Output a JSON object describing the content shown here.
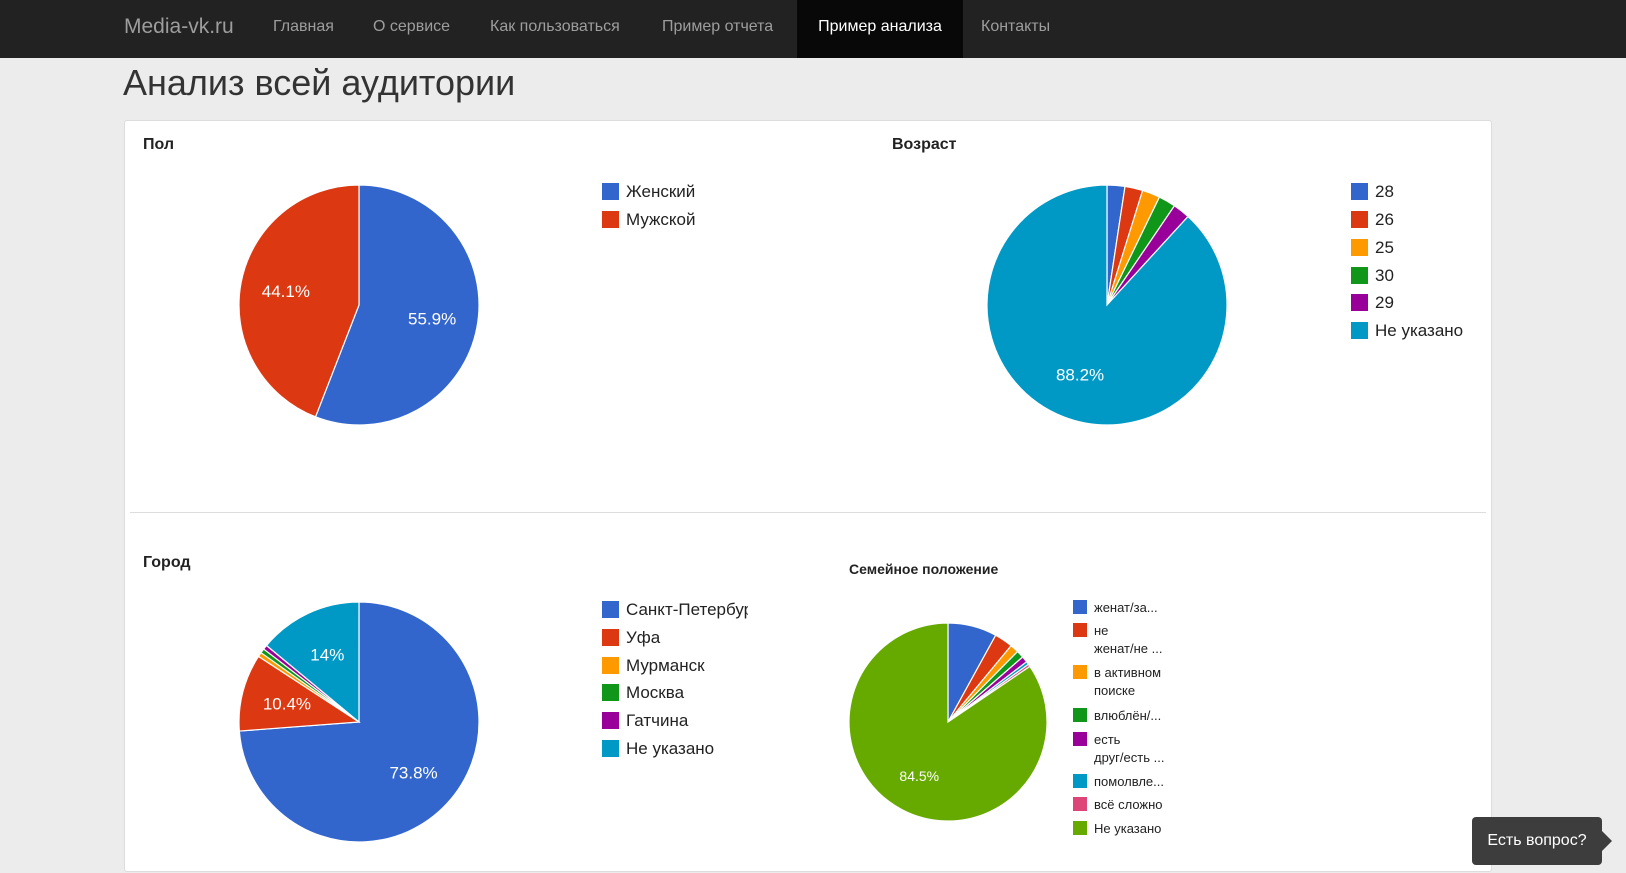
{
  "navbar": {
    "brand": "Media-vk.ru",
    "items": [
      {
        "label": "Главная",
        "active": false
      },
      {
        "label": "О сервисе",
        "active": false
      },
      {
        "label": "Как пользоваться",
        "active": false
      },
      {
        "label": "Пример отчета",
        "active": false
      },
      {
        "label": "Пример анализа",
        "active": true
      },
      {
        "label": "Контакты",
        "active": false
      }
    ]
  },
  "page": {
    "title": "Анализ всей аудитории"
  },
  "help_button": {
    "label": "Есть вопрос?"
  },
  "chart_data": [
    {
      "type": "pie",
      "title": "Пол",
      "slices": [
        {
          "label": "Женский",
          "value": 55.9,
          "color": "#3366cc",
          "shown_label": "55.9%"
        },
        {
          "label": "Мужской",
          "value": 44.1,
          "color": "#dc3912",
          "shown_label": "44.1%"
        }
      ],
      "legend": "right"
    },
    {
      "type": "pie",
      "title": "Возраст",
      "slices": [
        {
          "label": "28",
          "value": 2.4,
          "color": "#3366cc",
          "shown_label": ""
        },
        {
          "label": "26",
          "value": 2.4,
          "color": "#dc3912",
          "shown_label": ""
        },
        {
          "label": "25",
          "value": 2.4,
          "color": "#ff9900",
          "shown_label": ""
        },
        {
          "label": "30",
          "value": 2.3,
          "color": "#109618",
          "shown_label": ""
        },
        {
          "label": "29",
          "value": 2.3,
          "color": "#990099",
          "shown_label": ""
        },
        {
          "label": "Не указано",
          "value": 88.2,
          "color": "#0099c6",
          "shown_label": "88.2%"
        }
      ],
      "legend": "right"
    },
    {
      "type": "pie",
      "title": "Город",
      "slices": [
        {
          "label": "Санкт-Петербург",
          "value": 73.8,
          "color": "#3366cc",
          "shown_label": "73.8%"
        },
        {
          "label": "Уфа",
          "value": 10.4,
          "color": "#dc3912",
          "shown_label": "10.4%"
        },
        {
          "label": "Мурманск",
          "value": 0.6,
          "color": "#ff9900",
          "shown_label": ""
        },
        {
          "label": "Москва",
          "value": 0.6,
          "color": "#109618",
          "shown_label": ""
        },
        {
          "label": "Гатчина",
          "value": 0.6,
          "color": "#990099",
          "shown_label": ""
        },
        {
          "label": "Не указано",
          "value": 14.0,
          "color": "#0099c6",
          "shown_label": "14%"
        }
      ],
      "legend": "right"
    },
    {
      "type": "pie",
      "title": "Семейное положение",
      "slices": [
        {
          "label": "женат/за...",
          "value": 8.0,
          "color": "#3366cc",
          "shown_label": ""
        },
        {
          "label": "не\nженат/не ...",
          "value": 3.0,
          "color": "#dc3912",
          "shown_label": ""
        },
        {
          "label": "в активном\nпоиске",
          "value": 1.4,
          "color": "#ff9900",
          "shown_label": ""
        },
        {
          "label": "влюблён/...",
          "value": 1.2,
          "color": "#109618",
          "shown_label": ""
        },
        {
          "label": "есть\nдруг/есть ...",
          "value": 1.0,
          "color": "#990099",
          "shown_label": ""
        },
        {
          "label": "помолвле...",
          "value": 0.5,
          "color": "#0099c6",
          "shown_label": ""
        },
        {
          "label": "всё сложно",
          "value": 0.4,
          "color": "#dd4477",
          "shown_label": ""
        },
        {
          "label": "Не указано",
          "value": 84.5,
          "color": "#66aa00",
          "shown_label": "84.5%"
        }
      ],
      "legend": "right"
    }
  ]
}
